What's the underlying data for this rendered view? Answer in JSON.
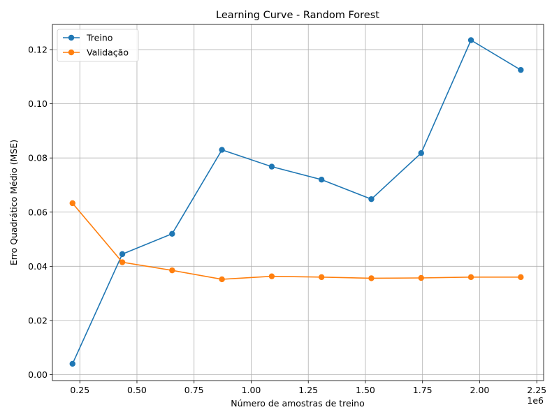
{
  "chart_data": {
    "type": "line",
    "title": "Learning Curve - Random Forest",
    "xlabel": "Número de amostras de treino",
    "ylabel": "Erro Quadrático Médio (MSE)",
    "x_offset_label": "1e6",
    "xlim": [
      0.13,
      2.28
    ],
    "ylim": [
      -0.0022,
      0.1293
    ],
    "xticks": [
      0.25,
      0.5,
      0.75,
      1.0,
      1.25,
      1.5,
      1.75,
      2.0,
      2.25
    ],
    "xtick_labels": [
      "0.25",
      "0.50",
      "0.75",
      "1.00",
      "1.25",
      "1.50",
      "1.75",
      "2.00",
      "2.25"
    ],
    "yticks": [
      0.0,
      0.02,
      0.04,
      0.06,
      0.08,
      0.1,
      0.12
    ],
    "ytick_labels": [
      "0.00",
      "0.02",
      "0.04",
      "0.06",
      "0.08",
      "0.10",
      "0.12"
    ],
    "grid": true,
    "legend_position": "top-left",
    "x": [
      0.218,
      0.436,
      0.654,
      0.872,
      1.09,
      1.308,
      1.526,
      1.744,
      1.962,
      2.18
    ],
    "series": [
      {
        "name": "Treino",
        "color": "#1f77b4",
        "values": [
          0.004,
          0.0445,
          0.052,
          0.083,
          0.0768,
          0.072,
          0.0648,
          0.0818,
          0.1235,
          0.1125
        ]
      },
      {
        "name": "Validação",
        "color": "#ff7f0e",
        "values": [
          0.0633,
          0.0415,
          0.0385,
          0.0352,
          0.0363,
          0.036,
          0.0356,
          0.0357,
          0.036,
          0.036
        ]
      }
    ]
  }
}
